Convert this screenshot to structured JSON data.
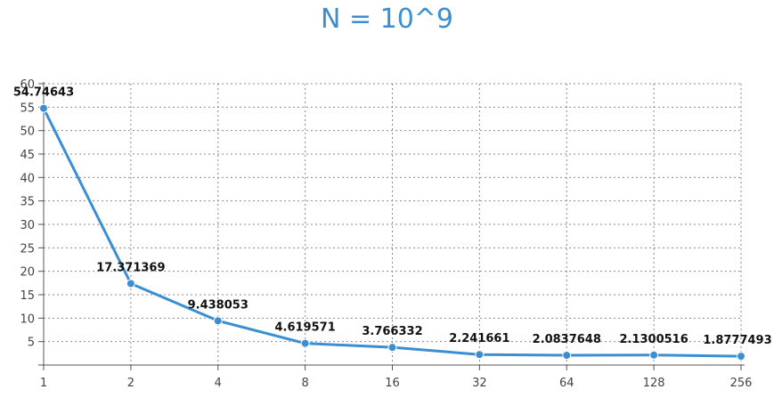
{
  "chart_data": {
    "type": "line",
    "title": "N = 10^9",
    "xlabel": "",
    "ylabel": "",
    "categories": [
      "1",
      "2",
      "4",
      "8",
      "16",
      "32",
      "64",
      "128",
      "256"
    ],
    "series": [
      {
        "values": [
          54.74643,
          17.371369,
          9.438053,
          4.619571,
          3.766332,
          2.241661,
          2.0837648,
          2.1300516,
          1.8777493
        ],
        "labels": [
          "54.74643",
          "17.371369",
          "9.438053",
          "4.619571",
          "3.766332",
          "2.241661",
          "2.0837648",
          "2.1300516",
          "1.8777493"
        ]
      }
    ],
    "yticks": [
      "5",
      "10",
      "15",
      "20",
      "25",
      "30",
      "35",
      "40",
      "45",
      "50",
      "55",
      "60"
    ],
    "ytick_values": [
      5,
      10,
      15,
      20,
      25,
      30,
      35,
      40,
      45,
      50,
      55,
      60
    ],
    "ylim": [
      0,
      60
    ],
    "grid": true,
    "legend": "none",
    "colors": {
      "title": "#3b8fd0",
      "line": "#3a8fd4",
      "marker": "#3a8fd4"
    }
  }
}
